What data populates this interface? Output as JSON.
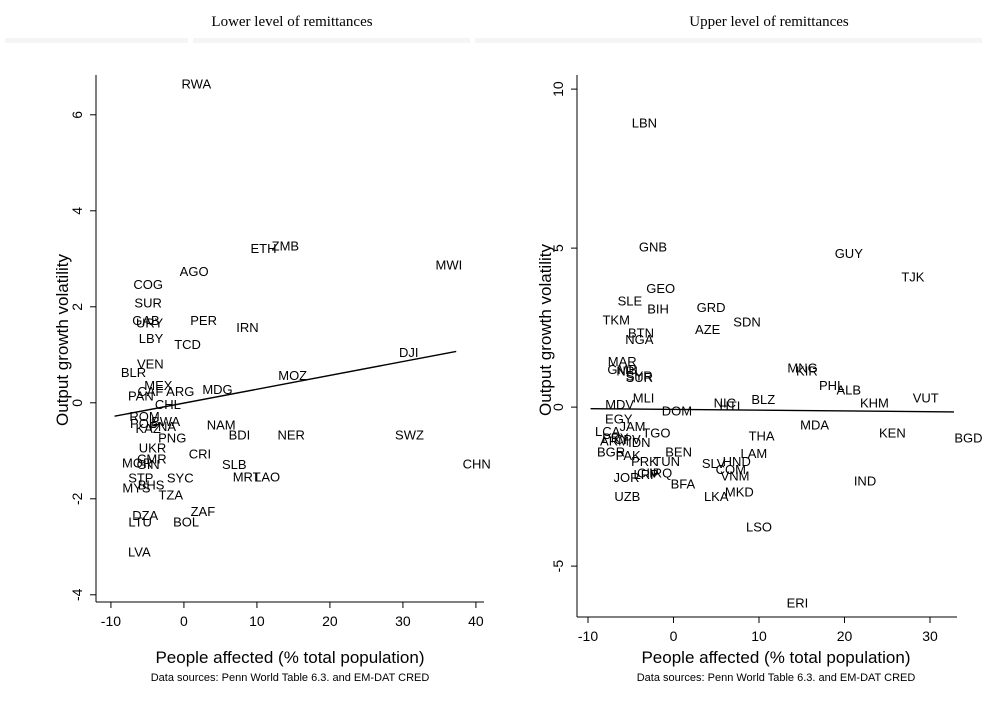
{
  "chart_data": [
    {
      "type": "scatter",
      "title": "Lower level of remittances",
      "xlabel": "People affected (% total population)",
      "ylabel": "Output growth volatility",
      "note": "Data sources: Penn World Table 6.3. and EM-DAT CRED",
      "xlim": [
        -12,
        42
      ],
      "ylim": [
        -4.15,
        6.9
      ],
      "xticks": [
        "-10",
        "0",
        "10",
        "20",
        "30",
        "40"
      ],
      "yticks": [
        "-4",
        "-2",
        "0",
        "2",
        "4",
        "6"
      ],
      "fit_line": {
        "x": [
          -9.5,
          37.3
        ],
        "y": [
          -0.28,
          1.07
        ]
      },
      "points": [
        {
          "label": "RWA",
          "x": 1.7,
          "y": 6.65
        },
        {
          "label": "ZMB",
          "x": 13.9,
          "y": 3.28
        },
        {
          "label": "ETH",
          "x": 10.9,
          "y": 3.22
        },
        {
          "label": "MWI",
          "x": 36.3,
          "y": 2.88
        },
        {
          "label": "AGO",
          "x": 1.4,
          "y": 2.75
        },
        {
          "label": "COG",
          "x": -4.9,
          "y": 2.47
        },
        {
          "label": "SUR",
          "x": -4.9,
          "y": 2.09
        },
        {
          "label": "PER",
          "x": 2.7,
          "y": 1.72
        },
        {
          "label": "GAB",
          "x": -5.2,
          "y": 1.72
        },
        {
          "label": "URY",
          "x": -4.7,
          "y": 1.67
        },
        {
          "label": "IRN",
          "x": 8.7,
          "y": 1.58
        },
        {
          "label": "LBY",
          "x": -4.5,
          "y": 1.35
        },
        {
          "label": "TCD",
          "x": 0.5,
          "y": 1.22
        },
        {
          "label": "DJI",
          "x": 30.8,
          "y": 1.06
        },
        {
          "label": "VEN",
          "x": -4.6,
          "y": 0.82
        },
        {
          "label": "BLR",
          "x": -6.9,
          "y": 0.64
        },
        {
          "label": "MOZ",
          "x": 14.9,
          "y": 0.58
        },
        {
          "label": "MEX",
          "x": -3.5,
          "y": 0.37
        },
        {
          "label": "MDG",
          "x": 4.6,
          "y": 0.29
        },
        {
          "label": "ARG",
          "x": -0.5,
          "y": 0.25
        },
        {
          "label": "CAF",
          "x": -4.6,
          "y": 0.25
        },
        {
          "label": "PAN",
          "x": -5.9,
          "y": 0.15
        },
        {
          "label": "CHL",
          "x": -2.2,
          "y": -0.02
        },
        {
          "label": "ROM",
          "x": -5.4,
          "y": -0.27
        },
        {
          "label": "BWA",
          "x": -2.5,
          "y": -0.38
        },
        {
          "label": "POL",
          "x": -5.6,
          "y": -0.42
        },
        {
          "label": "NAM",
          "x": 5.1,
          "y": -0.45
        },
        {
          "label": "PNA",
          "x": -2.9,
          "y": -0.48
        },
        {
          "label": "KAZ",
          "x": -4.9,
          "y": -0.52
        },
        {
          "label": "BDI",
          "x": 7.6,
          "y": -0.66
        },
        {
          "label": "NER",
          "x": 14.7,
          "y": -0.66
        },
        {
          "label": "SWZ",
          "x": 30.9,
          "y": -0.66
        },
        {
          "label": "PNG",
          "x": -1.6,
          "y": -0.72
        },
        {
          "label": "UKR",
          "x": -4.3,
          "y": -0.93
        },
        {
          "label": "CRI",
          "x": 2.2,
          "y": -1.06
        },
        {
          "label": "CMR",
          "x": -4.4,
          "y": -1.16
        },
        {
          "label": "MOR",
          "x": -6.4,
          "y": -1.24
        },
        {
          "label": "GIN",
          "x": -4.9,
          "y": -1.28
        },
        {
          "label": "CHN",
          "x": 40.1,
          "y": -1.26
        },
        {
          "label": "SLB",
          "x": 6.9,
          "y": -1.28
        },
        {
          "label": "MRT",
          "x": 8.6,
          "y": -1.54
        },
        {
          "label": "LAO",
          "x": 11.4,
          "y": -1.54
        },
        {
          "label": "STP",
          "x": -5.9,
          "y": -1.56
        },
        {
          "label": "SYC",
          "x": -0.5,
          "y": -1.56
        },
        {
          "label": "BHS",
          "x": -4.5,
          "y": -1.7
        },
        {
          "label": "MYS",
          "x": -6.5,
          "y": -1.76
        },
        {
          "label": "TZA",
          "x": -1.8,
          "y": -1.91
        },
        {
          "label": "ZAF",
          "x": 2.6,
          "y": -2.25
        },
        {
          "label": "DZA",
          "x": -5.3,
          "y": -2.34
        },
        {
          "label": "LTU",
          "x": -6.0,
          "y": -2.47
        },
        {
          "label": "BOL",
          "x": 0.3,
          "y": -2.47
        },
        {
          "label": "LVA",
          "x": -6.1,
          "y": -3.1
        }
      ]
    },
    {
      "type": "scatter",
      "title": "Upper level of remittances",
      "xlabel": "People affected (% total population)",
      "ylabel": "Output growth volatility",
      "note": "Data sources: Penn World Table 6.3. and EM-DAT CRED",
      "xlim": [
        -10.8,
        36
      ],
      "ylim": [
        -6.6,
        10.5
      ],
      "xticks": [
        "-10",
        "0",
        "10",
        "20",
        "30"
      ],
      "yticks": [
        "-5",
        "0",
        "5",
        "10"
      ],
      "fit_line": {
        "x": [
          -9.7,
          32.8
        ],
        "y": [
          -0.05,
          -0.15
        ]
      },
      "points": [
        {
          "label": "LBN",
          "x": -3.4,
          "y": 8.95
        },
        {
          "label": "GNB",
          "x": -2.4,
          "y": 5.05
        },
        {
          "label": "GUY",
          "x": 20.5,
          "y": 4.85
        },
        {
          "label": "TJK",
          "x": 28.0,
          "y": 4.1
        },
        {
          "label": "GEO",
          "x": -1.5,
          "y": 3.75
        },
        {
          "label": "SLE",
          "x": -5.1,
          "y": 3.35
        },
        {
          "label": "GRD",
          "x": 4.4,
          "y": 3.15
        },
        {
          "label": "BIH",
          "x": -1.8,
          "y": 3.1
        },
        {
          "label": "SDN",
          "x": 8.6,
          "y": 2.7
        },
        {
          "label": "TKM",
          "x": -6.7,
          "y": 2.75
        },
        {
          "label": "AZE",
          "x": 4.0,
          "y": 2.45
        },
        {
          "label": "BTN",
          "x": -3.8,
          "y": 2.35
        },
        {
          "label": "NGA",
          "x": -4.0,
          "y": 2.15
        },
        {
          "label": "MAR",
          "x": -6.0,
          "y": 1.45
        },
        {
          "label": "MNG",
          "x": 15.1,
          "y": 1.25
        },
        {
          "label": "KIR",
          "x": 15.6,
          "y": 1.15
        },
        {
          "label": "GMB",
          "x": -6.0,
          "y": 1.2
        },
        {
          "label": "NPL",
          "x": -5.2,
          "y": 1.15
        },
        {
          "label": "SYR",
          "x": -4.0,
          "y": 1.0
        },
        {
          "label": "SUR",
          "x": -4.0,
          "y": 0.95
        },
        {
          "label": "PHL",
          "x": 18.5,
          "y": 0.7
        },
        {
          "label": "ALB",
          "x": 20.5,
          "y": 0.55
        },
        {
          "label": "MLI",
          "x": -3.5,
          "y": 0.3
        },
        {
          "label": "BLZ",
          "x": 10.5,
          "y": 0.25
        },
        {
          "label": "VUT",
          "x": 29.5,
          "y": 0.3
        },
        {
          "label": "NIC",
          "x": 6.0,
          "y": 0.15
        },
        {
          "label": "HTI",
          "x": 6.6,
          "y": 0.05
        },
        {
          "label": "KHM",
          "x": 23.5,
          "y": 0.15
        },
        {
          "label": "MDV",
          "x": -6.3,
          "y": 0.1
        },
        {
          "label": "DOM",
          "x": 0.4,
          "y": -0.1
        },
        {
          "label": "EGY",
          "x": -6.4,
          "y": -0.35
        },
        {
          "label": "MDA",
          "x": 16.5,
          "y": -0.55
        },
        {
          "label": "JAM",
          "x": -4.8,
          "y": -0.6
        },
        {
          "label": "LCA",
          "x": -7.7,
          "y": -0.75
        },
        {
          "label": "TGO",
          "x": -2.0,
          "y": -0.8
        },
        {
          "label": "KEN",
          "x": 25.6,
          "y": -0.8
        },
        {
          "label": "THA",
          "x": 10.3,
          "y": -0.9
        },
        {
          "label": "PRY",
          "x": -6.8,
          "y": -0.95
        },
        {
          "label": "CPV",
          "x": -5.4,
          "y": -1.0
        },
        {
          "label": "ARM",
          "x": -6.9,
          "y": -1.05
        },
        {
          "label": "IDN",
          "x": -4.0,
          "y": -1.1
        },
        {
          "label": "BEN",
          "x": 0.6,
          "y": -1.4
        },
        {
          "label": "BGR",
          "x": -7.3,
          "y": -1.4
        },
        {
          "label": "LAM",
          "x": 9.4,
          "y": -1.45
        },
        {
          "label": "PAK",
          "x": -5.3,
          "y": -1.5
        },
        {
          "label": "PRK",
          "x": -3.4,
          "y": -1.7
        },
        {
          "label": "TUN",
          "x": -0.8,
          "y": -1.7
        },
        {
          "label": "HND",
          "x": 7.4,
          "y": -1.7
        },
        {
          "label": "SLV",
          "x": 4.7,
          "y": -1.75
        },
        {
          "label": "COM",
          "x": 6.7,
          "y": -1.95
        },
        {
          "label": "JOR",
          "x": -5.5,
          "y": -2.2
        },
        {
          "label": "LRP",
          "x": -3.2,
          "y": -2.1
        },
        {
          "label": "CIV",
          "x": -3.0,
          "y": -2.05
        },
        {
          "label": "IRQ",
          "x": -1.5,
          "y": -2.05
        },
        {
          "label": "VNM",
          "x": 7.2,
          "y": -2.15
        },
        {
          "label": "IND",
          "x": 22.4,
          "y": -2.3
        },
        {
          "label": "BFA",
          "x": 1.1,
          "y": -2.4
        },
        {
          "label": "UZB",
          "x": -5.4,
          "y": -2.8
        },
        {
          "label": "MKD",
          "x": 7.7,
          "y": -2.65
        },
        {
          "label": "LKA",
          "x": 5.0,
          "y": -2.8
        },
        {
          "label": "LSO",
          "x": 10.0,
          "y": -3.75
        },
        {
          "label": "ERI",
          "x": 14.5,
          "y": -6.15
        },
        {
          "label": "BGD",
          "x": 34.5,
          "y": -0.95
        }
      ]
    }
  ]
}
